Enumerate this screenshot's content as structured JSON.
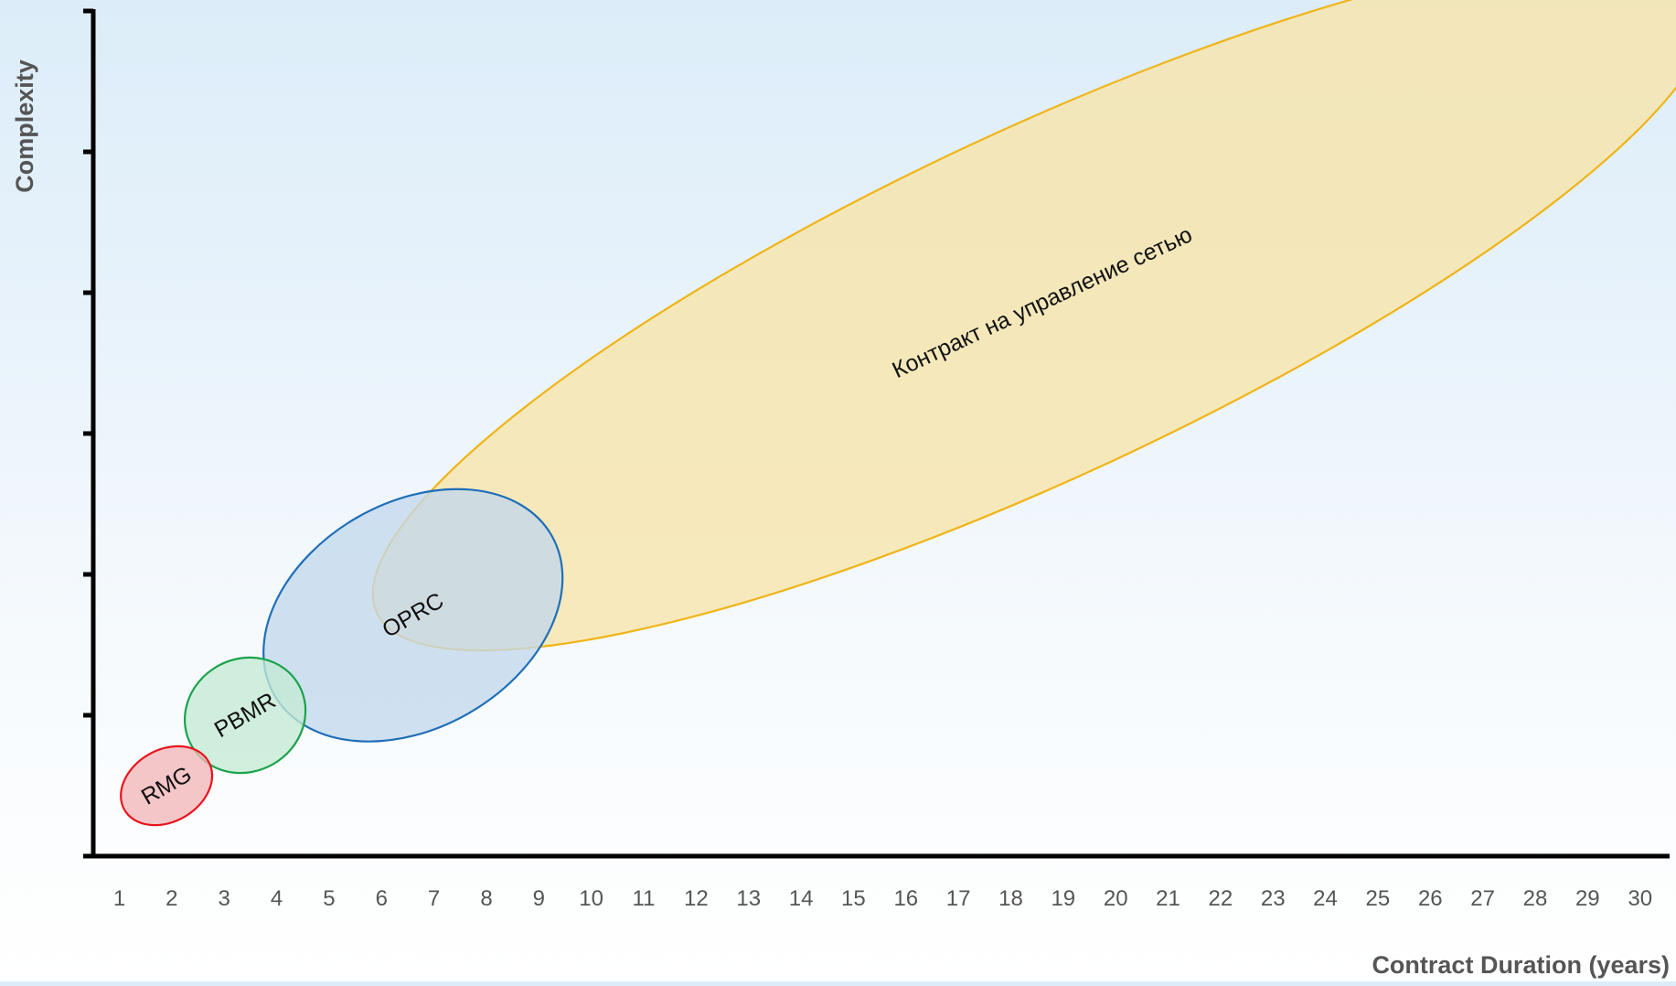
{
  "chart_data": {
    "type": "scatter",
    "subtype": "bubble-ellipses",
    "xlabel": "Contract Duration (years)",
    "ylabel": "Complexity",
    "x_ticks": [
      "1",
      "2",
      "3",
      "4",
      "5",
      "6",
      "7",
      "8",
      "9",
      "10",
      "11",
      "12",
      "13",
      "14",
      "15",
      "16",
      "17",
      "18",
      "19",
      "20",
      "21",
      "22",
      "23",
      "24",
      "25",
      "26",
      "27",
      "28",
      "29",
      "30"
    ],
    "xlim": [
      0.5,
      30.5
    ],
    "ylim": [
      0,
      6
    ],
    "y_tick_values": [
      0,
      1,
      2,
      3,
      4,
      5,
      6
    ],
    "y_tick_labels_shown": false,
    "grid": false,
    "legend": "none",
    "series": [
      {
        "name": "RMG",
        "color": "#e8141c",
        "fill": "#f4b6b8",
        "x_center": 1.9,
        "y_center": 0.5,
        "x_range": [
          0.5,
          2.1
        ],
        "y_range": [
          0.25,
          0.8
        ],
        "angle_deg": -30,
        "rx_years": 1.85,
        "ry_units": 0.255
      },
      {
        "name": "PBMR",
        "color": "#1aa34a",
        "fill": "#c4ead4",
        "x_center": 3.4,
        "y_center": 1.0,
        "x_range": [
          2.4,
          4.8
        ],
        "y_range": [
          0.58,
          1.42
        ],
        "angle_deg": -30,
        "rx_years": 2.35,
        "ry_units": 0.4
      },
      {
        "name": "OPRC",
        "color": "#1f6fb8",
        "fill": "#c3d8ec",
        "x_center": 6.6,
        "y_center": 1.71,
        "x_range": [
          4.5,
          9.2
        ],
        "y_range": [
          0.92,
          2.62
        ],
        "angle_deg": -30,
        "rx_years": 6.1,
        "ry_units": 0.8
      },
      {
        "name": "Контракт на управление сетью",
        "color": "#f0b418",
        "fill": "#f7e4a8",
        "x_center": 18.6,
        "y_center": 3.93,
        "x_range": [
          7.0,
          30.1
        ],
        "y_range": [
          1.58,
          6.0
        ],
        "angle_deg": -25,
        "rx_years": 28.0,
        "ry_units": 1.23
      }
    ]
  }
}
